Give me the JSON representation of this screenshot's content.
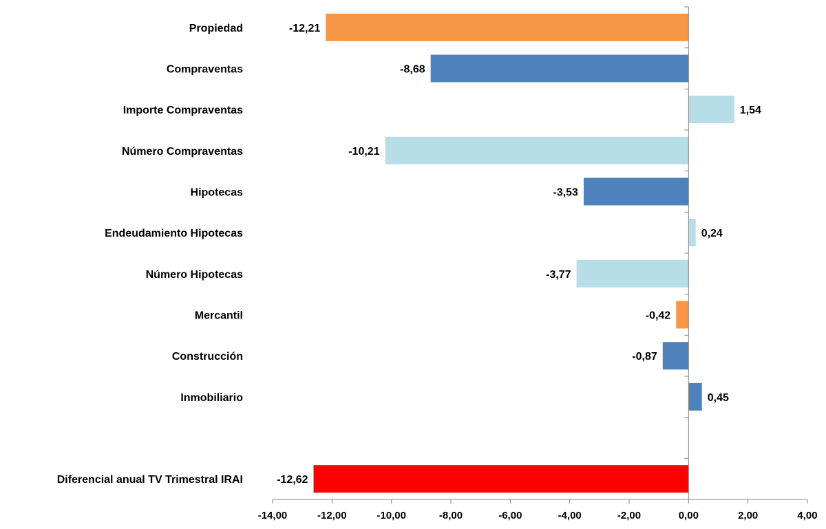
{
  "chart_data": {
    "type": "bar",
    "orientation": "horizontal",
    "categories": [
      "Propiedad",
      "Compraventas",
      "Importe Compraventas",
      "Número Compraventas",
      "Hipotecas",
      "Endeudamiento Hipotecas",
      "Número Hipotecas",
      "Mercantil",
      "Construcción",
      "Inmobiliario",
      "",
      "Diferencial anual TV Trimestral IRAI"
    ],
    "values": [
      -12.21,
      -8.68,
      1.54,
      -10.21,
      -3.53,
      0.24,
      -3.77,
      -0.42,
      -0.87,
      0.45,
      null,
      -12.62
    ],
    "value_labels": [
      "-12,21",
      "-8,68",
      "1,54",
      "-10,21",
      "-3,53",
      "0,24",
      "-3,77",
      "-0,42",
      "-0,87",
      "0,45",
      "",
      "-12,62"
    ],
    "colors": [
      "#f79646",
      "#4f81bd",
      "#b7dde8",
      "#b7dde8",
      "#4f81bd",
      "#b7dde8",
      "#b7dde8",
      "#f79646",
      "#4f81bd",
      "#4f81bd",
      "",
      "#ff0000"
    ],
    "xlim": [
      -14,
      4
    ],
    "xticks": [
      -14,
      -12,
      -10,
      -8,
      -6,
      -4,
      -2,
      0,
      2,
      4
    ],
    "xtick_labels": [
      "-14,00",
      "-12,00",
      "-10,00",
      "-8,00",
      "-6,00",
      "-4,00",
      "-2,00",
      "0,00",
      "2,00",
      "4,00"
    ],
    "title": "",
    "xlabel": "",
    "ylabel": "",
    "grid": false,
    "legend": "none"
  }
}
